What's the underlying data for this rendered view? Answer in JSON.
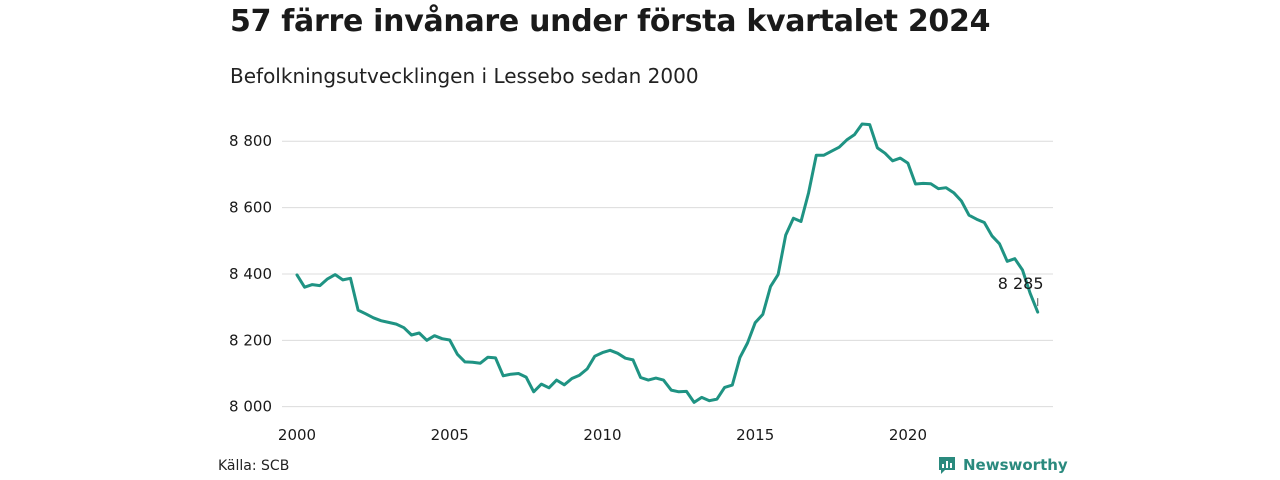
{
  "colors": {
    "line": "#1f9383",
    "grid": "#dcdcdc",
    "brand": "#2a8a7e"
  },
  "chart_data": {
    "type": "line",
    "title": "57 färre invånare under första kvartalet 2024",
    "subtitle": "Befolkningsutvecklingen i Lessebo sedan 2000",
    "xlim": [
      2000,
      2024.75
    ],
    "ylim": [
      7990,
      8870
    ],
    "x_ticks": [
      2000,
      2005,
      2010,
      2015,
      2020
    ],
    "x_tick_labels": [
      "2000",
      "2005",
      "2010",
      "2015",
      "2020"
    ],
    "y_ticks": [
      8000,
      8200,
      8400,
      8600,
      8800
    ],
    "y_tick_labels": [
      "8 000",
      "8 200",
      "8 400",
      "8 600",
      "8 800"
    ],
    "grid": true,
    "end_label": "8 285",
    "series": [
      {
        "values": [
          8397,
          8360,
          8368,
          8365,
          8385,
          8398,
          8382,
          8387,
          8291,
          8280,
          8268,
          8259,
          8254,
          8249,
          8238,
          8216,
          8222,
          8200,
          8214,
          8205,
          8201,
          8158,
          8135,
          8134,
          8131,
          8149,
          8147,
          8093,
          8098,
          8100,
          8089,
          8045,
          8068,
          8057,
          8080,
          8066,
          8085,
          8095,
          8114,
          8152,
          8163,
          8170,
          8161,
          8146,
          8141,
          8088,
          8080,
          8086,
          8080,
          8050,
          8045,
          8046,
          8013,
          8028,
          8018,
          8023,
          8058,
          8065,
          8148,
          8192,
          8253,
          8278,
          8362,
          8398,
          8517,
          8568,
          8558,
          8645,
          8758,
          8758,
          8770,
          8782,
          8804,
          8820,
          8852,
          8850,
          8780,
          8764,
          8741,
          8749,
          8734,
          8671,
          8673,
          8672,
          8657,
          8660,
          8645,
          8620,
          8577,
          8565,
          8555,
          8515,
          8491,
          8438,
          8446,
          8412,
          8342,
          8285
        ]
      }
    ],
    "x": "quarterly from 2000.0, step 0.25"
  },
  "source": "Källa: SCB",
  "brand": {
    "name": "Newsworthy",
    "icon": "newsworthy-logo-icon"
  }
}
